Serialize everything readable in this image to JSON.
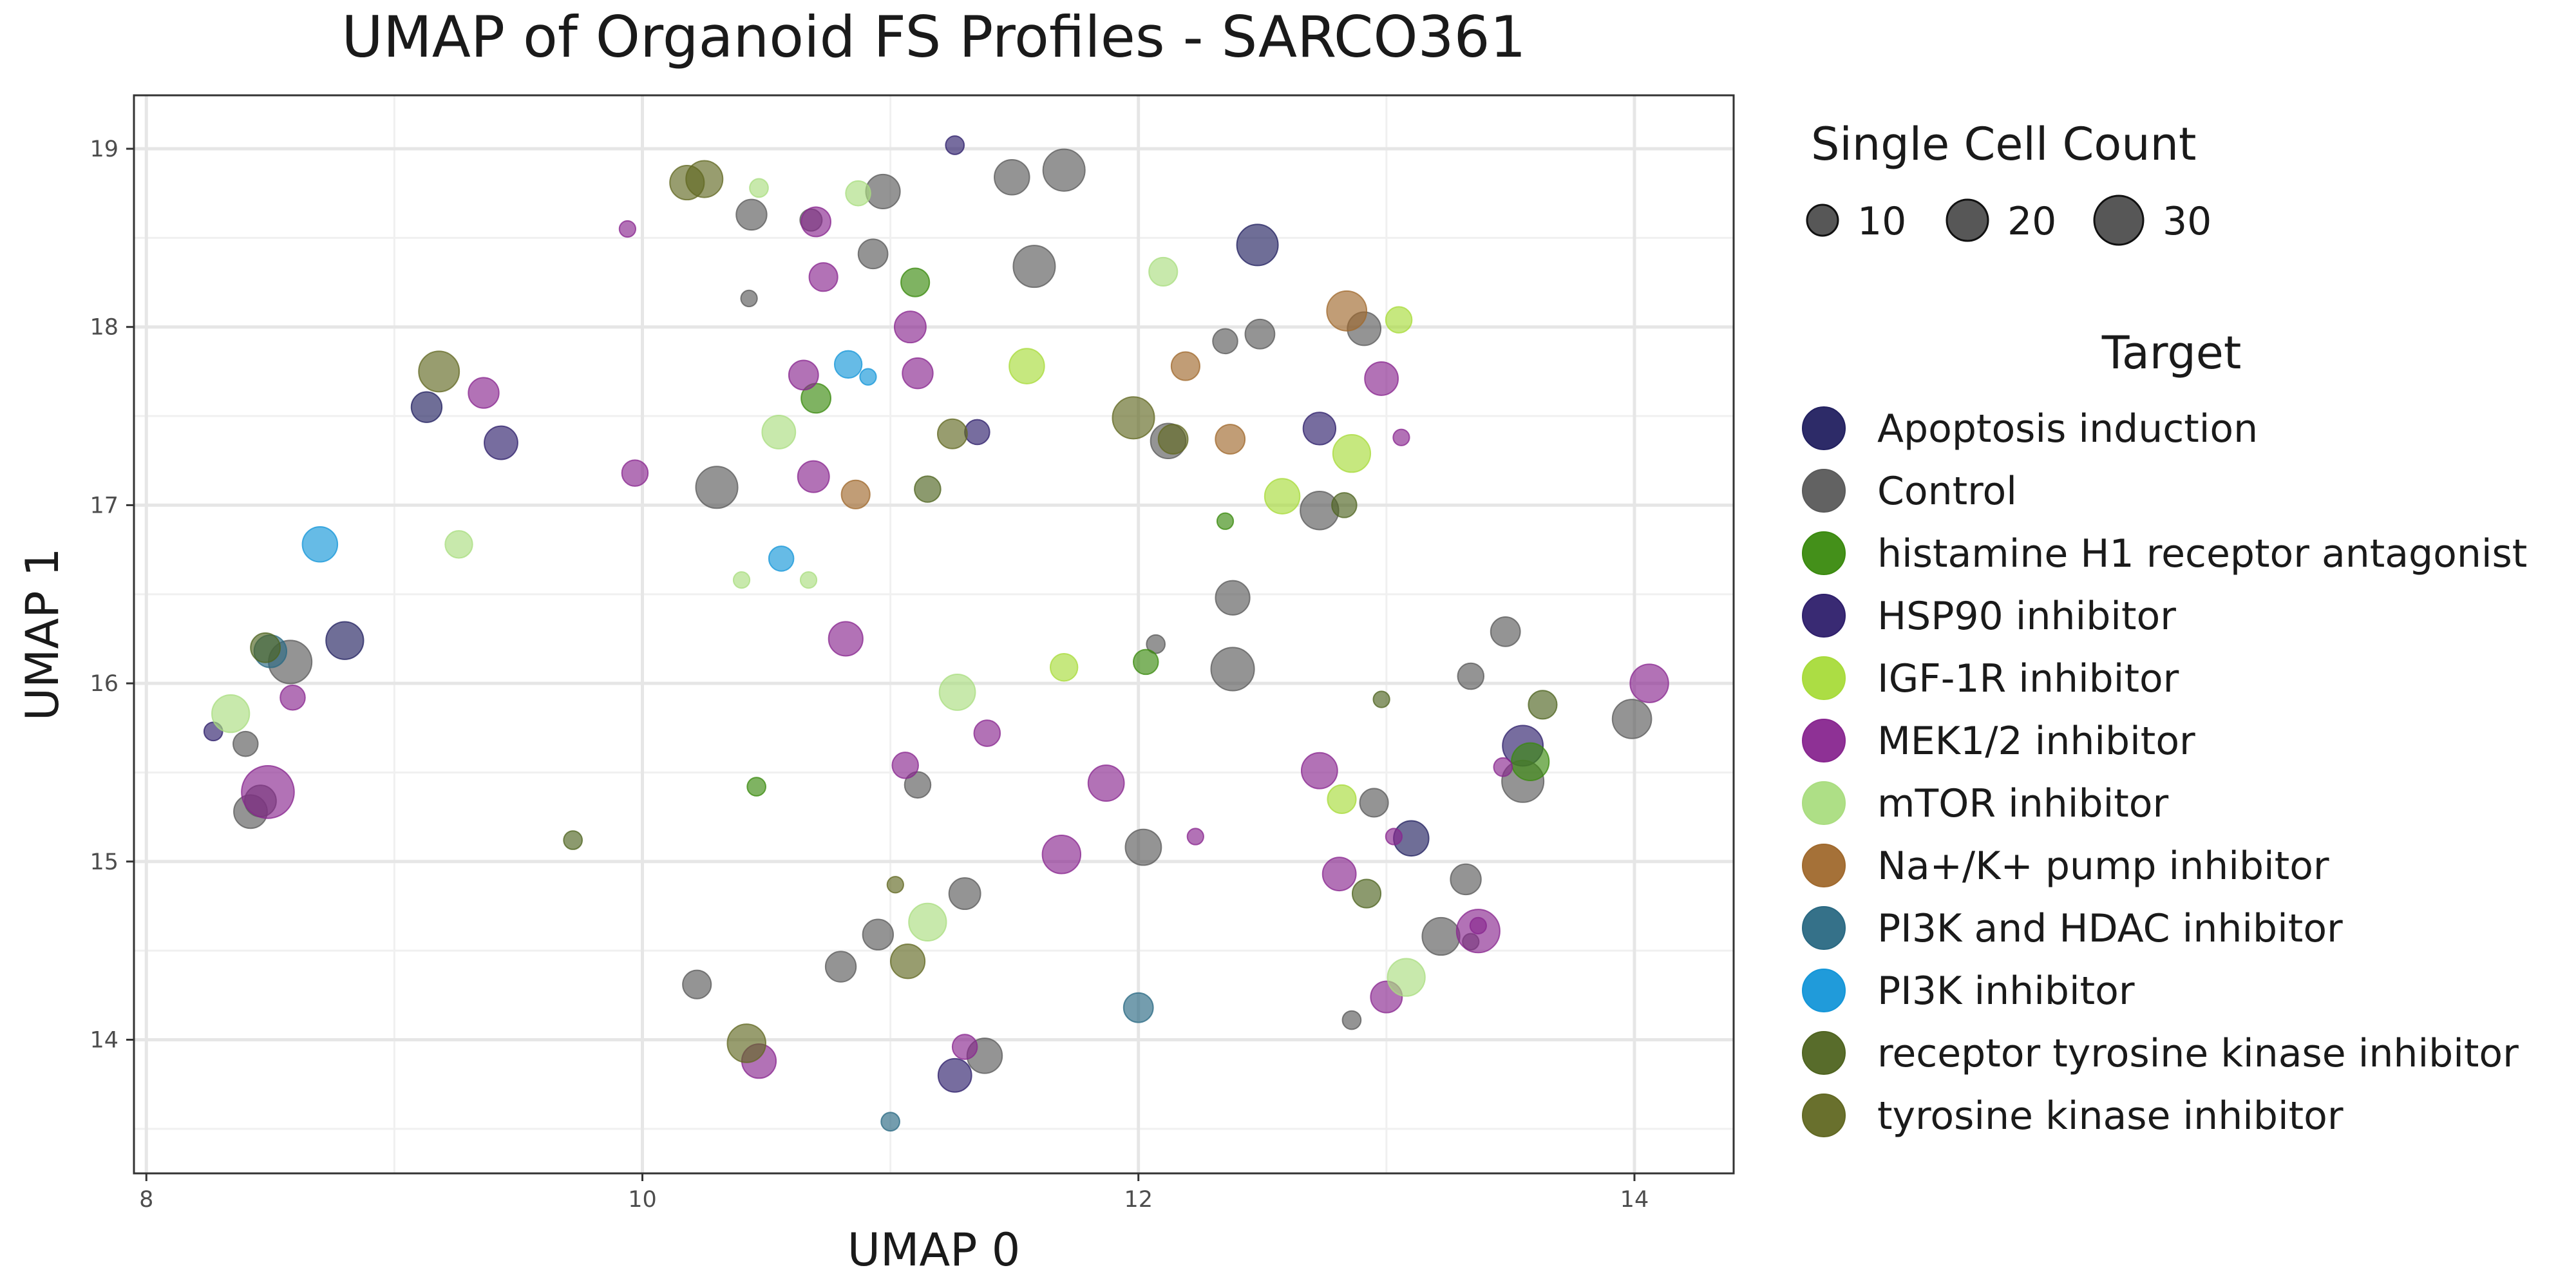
{
  "chart_data": {
    "type": "scatter",
    "title": "UMAP of Organoid FS Profiles - SARCO361",
    "xlabel": "UMAP 0",
    "ylabel": "UMAP 1",
    "xlim": [
      7.95,
      14.4
    ],
    "ylim": [
      13.25,
      19.3
    ],
    "x_ticks": [
      8,
      10,
      12,
      14
    ],
    "y_ticks": [
      14,
      15,
      16,
      17,
      18,
      19
    ],
    "grid": true,
    "legend_position": "right",
    "size_legend": {
      "title": "Single Cell Count",
      "entries": [
        {
          "label": "10",
          "value": 10
        },
        {
          "label": "20",
          "value": 20
        },
        {
          "label": "30",
          "value": 30
        }
      ]
    },
    "color_legend": {
      "title": "Target",
      "entries": [
        {
          "label": "Apoptosis induction",
          "color": "#222060"
        },
        {
          "label": "Control",
          "color": "#5a5a5a"
        },
        {
          "label": "histamine H1 receptor antagonist",
          "color": "#3a8a0e"
        },
        {
          "label": "HSP90 inhibitor",
          "color": "#2e1f6b"
        },
        {
          "label": "IGF-1R inhibitor",
          "color": "#a8db3a"
        },
        {
          "label": "MEK1/2 inhibitor",
          "color": "#88268f"
        },
        {
          "label": "mTOR inhibitor",
          "color": "#aadd80"
        },
        {
          "label": "Na+/K+ pump inhibitor",
          "color": "#a0692d"
        },
        {
          "label": "PI3K and HDAC inhibitor",
          "color": "#2a6983"
        },
        {
          "label": "PI3K inhibitor",
          "color": "#1496d8"
        },
        {
          "label": "receptor tyrosine kinase inhibitor",
          "color": "#4f6420"
        },
        {
          "label": "tyrosine kinase inhibitor",
          "color": "#616822"
        }
      ]
    },
    "series": [
      {
        "target": "Apoptosis induction",
        "points": [
          [
            8.8,
            16.24,
            20
          ],
          [
            9.13,
            17.55,
            12
          ],
          [
            12.48,
            18.46,
            25
          ],
          [
            13.1,
            15.13,
            17
          ]
        ]
      },
      {
        "target": "HSP90 inhibitor",
        "points": [
          [
            9.43,
            17.35,
            15
          ],
          [
            8.27,
            15.73,
            3
          ],
          [
            11.26,
            13.8,
            15
          ],
          [
            11.35,
            17.41,
            7
          ],
          [
            12.73,
            17.43,
            14
          ],
          [
            13.55,
            15.65,
            24
          ],
          [
            11.26,
            19.02,
            3
          ]
        ]
      },
      {
        "target": "Control",
        "points": [
          [
            8.4,
            15.66,
            7
          ],
          [
            8.58,
            16.12,
            28
          ],
          [
            8.42,
            15.28,
            15
          ],
          [
            8.46,
            15.34,
            13
          ],
          [
            10.3,
            17.1,
            26
          ],
          [
            10.22,
            14.31,
            10
          ],
          [
            10.43,
            18.16,
            2
          ],
          [
            10.44,
            18.63,
            12
          ],
          [
            10.68,
            18.6,
            5
          ],
          [
            10.8,
            14.41,
            12
          ],
          [
            10.93,
            18.41,
            11
          ],
          [
            10.95,
            14.59,
            12
          ],
          [
            10.97,
            18.76,
            16
          ],
          [
            11.11,
            15.43,
            8
          ],
          [
            11.3,
            14.82,
            13
          ],
          [
            11.38,
            13.91,
            17
          ],
          [
            11.49,
            18.84,
            17
          ],
          [
            11.58,
            18.34,
            26
          ],
          [
            11.7,
            18.88,
            26
          ],
          [
            12.02,
            15.08,
            18
          ],
          [
            12.07,
            16.22,
            3
          ],
          [
            12.12,
            17.36,
            17
          ],
          [
            12.35,
            17.92,
            7
          ],
          [
            12.38,
            16.48,
            16
          ],
          [
            12.38,
            16.08,
            28
          ],
          [
            12.49,
            17.96,
            11
          ],
          [
            12.73,
            16.97,
            21
          ],
          [
            12.91,
            17.99,
            15
          ],
          [
            12.95,
            15.33,
            10
          ],
          [
            13.22,
            14.58,
            20
          ],
          [
            13.32,
            14.9,
            12
          ],
          [
            13.34,
            16.04,
            8
          ],
          [
            13.48,
            16.29,
            11
          ],
          [
            13.55,
            15.45,
            26
          ],
          [
            13.99,
            15.8,
            22
          ],
          [
            12.86,
            14.11,
            3
          ],
          [
            13.34,
            14.55,
            2
          ]
        ]
      },
      {
        "target": "histamine H1 receptor antagonist",
        "points": [
          [
            10.46,
            15.42,
            3
          ],
          [
            10.7,
            17.6,
            11
          ],
          [
            11.1,
            18.25,
            10
          ],
          [
            12.03,
            16.12,
            7
          ],
          [
            12.35,
            16.91,
            2
          ],
          [
            13.58,
            15.56,
            20
          ]
        ]
      },
      {
        "target": "IGF-1R inhibitor",
        "points": [
          [
            11.55,
            17.78,
            17
          ],
          [
            11.7,
            16.09,
            9
          ],
          [
            12.58,
            17.05,
            17
          ],
          [
            12.82,
            15.35,
            10
          ],
          [
            12.86,
            17.29,
            20
          ],
          [
            13.05,
            18.04,
            8
          ]
        ]
      },
      {
        "target": "MEK1/2 inhibitor",
        "points": [
          [
            8.49,
            15.39,
            44
          ],
          [
            8.59,
            15.92,
            7
          ],
          [
            9.36,
            17.63,
            12
          ],
          [
            9.94,
            18.55,
            2
          ],
          [
            9.97,
            17.18,
            8
          ],
          [
            10.47,
            13.88,
            16
          ],
          [
            10.65,
            17.73,
            11
          ],
          [
            10.69,
            17.16,
            13
          ],
          [
            10.7,
            18.59,
            11
          ],
          [
            10.73,
            18.28,
            10
          ],
          [
            10.82,
            16.25,
            16
          ],
          [
            11.06,
            15.54,
            8
          ],
          [
            11.08,
            18.0,
            13
          ],
          [
            11.11,
            17.74,
            12
          ],
          [
            11.3,
            13.96,
            7
          ],
          [
            11.39,
            15.72,
            8
          ],
          [
            11.69,
            15.04,
            21
          ],
          [
            11.87,
            15.44,
            18
          ],
          [
            12.23,
            15.14,
            2
          ],
          [
            12.73,
            15.51,
            18
          ],
          [
            12.81,
            14.93,
            15
          ],
          [
            12.98,
            17.71,
            15
          ],
          [
            13.0,
            14.24,
            13
          ],
          [
            13.03,
            15.14,
            2
          ],
          [
            13.06,
            17.38,
            2
          ],
          [
            13.37,
            14.64,
            2
          ],
          [
            13.37,
            14.61,
            28
          ],
          [
            13.47,
            15.53,
            3
          ],
          [
            14.06,
            16.0,
            21
          ]
        ]
      },
      {
        "target": "mTOR inhibitor",
        "points": [
          [
            8.34,
            15.83,
            20
          ],
          [
            9.26,
            16.78,
            9
          ],
          [
            10.4,
            16.58,
            2
          ],
          [
            10.47,
            18.78,
            3
          ],
          [
            10.55,
            17.41,
            15
          ],
          [
            10.67,
            16.58,
            2
          ],
          [
            10.87,
            18.75,
            7
          ],
          [
            11.15,
            14.66,
            20
          ],
          [
            11.27,
            15.95,
            18
          ],
          [
            12.1,
            18.31,
            10
          ],
          [
            13.08,
            14.35,
            20
          ]
        ]
      },
      {
        "target": "Na+/K+ pump inhibitor",
        "points": [
          [
            10.86,
            17.06,
            10
          ],
          [
            12.19,
            17.78,
            10
          ],
          [
            12.37,
            17.37,
            11
          ],
          [
            12.84,
            18.09,
            23
          ]
        ]
      },
      {
        "target": "PI3K and HDAC inhibitor",
        "points": [
          [
            8.5,
            16.18,
            14
          ],
          [
            11.0,
            13.54,
            3
          ],
          [
            12.0,
            14.18,
            11
          ]
        ]
      },
      {
        "target": "PI3K inhibitor",
        "points": [
          [
            8.7,
            16.78,
            17
          ],
          [
            10.56,
            16.7,
            7
          ],
          [
            10.83,
            17.79,
            9
          ],
          [
            10.91,
            17.72,
            2
          ]
        ]
      },
      {
        "target": "receptor tyrosine kinase inhibitor",
        "points": [
          [
            8.48,
            16.2,
            11
          ],
          [
            9.72,
            15.12,
            3
          ],
          [
            11.15,
            17.09,
            8
          ],
          [
            12.83,
            17.0,
            7
          ],
          [
            12.92,
            14.82,
            10
          ],
          [
            12.98,
            15.91,
            2
          ],
          [
            13.63,
            15.88,
            10
          ]
        ]
      },
      {
        "target": "tyrosine kinase inhibitor",
        "points": [
          [
            9.18,
            17.75,
            24
          ],
          [
            10.18,
            18.81,
            16
          ],
          [
            10.25,
            18.83,
            19
          ],
          [
            10.42,
            13.98,
            21
          ],
          [
            11.02,
            14.87,
            2
          ],
          [
            11.07,
            14.44,
            16
          ],
          [
            11.25,
            17.4,
            11
          ],
          [
            11.98,
            17.49,
            26
          ],
          [
            12.14,
            17.37,
            11
          ]
        ]
      }
    ]
  }
}
